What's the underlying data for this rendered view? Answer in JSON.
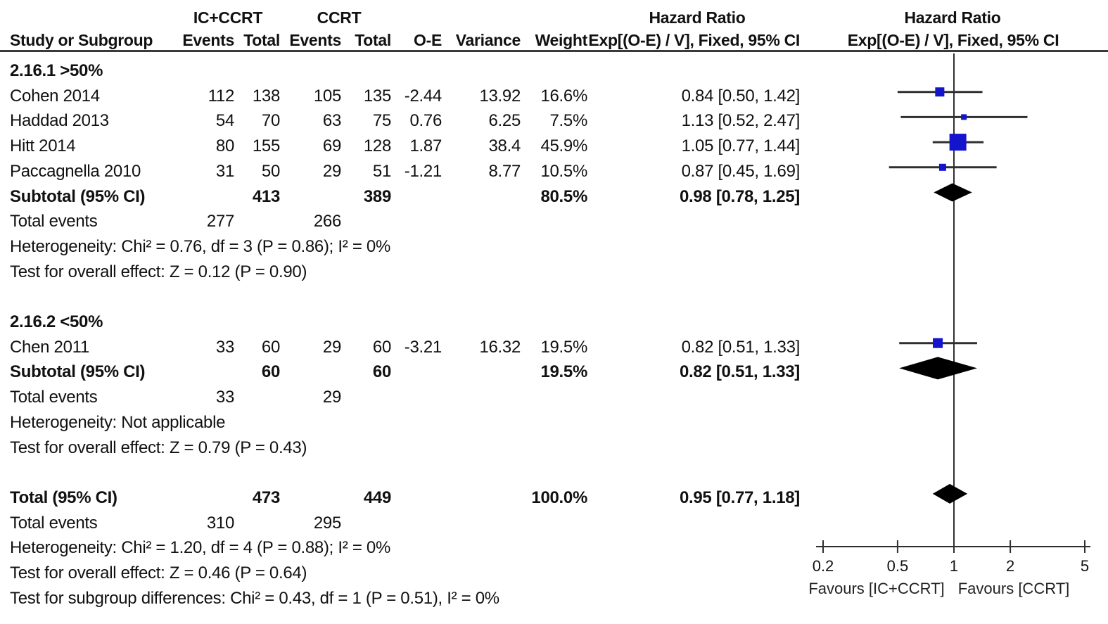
{
  "header": {
    "group1_label": "IC+CCRT",
    "group2_label": "CCRT",
    "hr_text_title": "Hazard Ratio",
    "hr_plot_title": "Hazard Ratio",
    "col_study": "Study or Subgroup",
    "col_events": "Events",
    "col_total": "Total",
    "col_oe": "O-E",
    "col_variance": "Variance",
    "col_weight": "Weight",
    "col_ci": "Exp[(O-E) / V], Fixed, 95% CI"
  },
  "colors": {
    "marker_blue": "#1414CC",
    "line_dark": "#2F2F2F",
    "diamond_black": "#000000",
    "text": "#111111"
  },
  "chart_data": {
    "type": "forest",
    "effect_measure": "Hazard Ratio",
    "model": "Fixed",
    "scale": "log",
    "axis": {
      "ticks": [
        "0.2",
        "0.5",
        "1",
        "2",
        "5"
      ],
      "xlim": [
        0.2,
        5
      ],
      "null_value": 1,
      "favours_left": "Favours [IC+CCRT]",
      "favours_right": "Favours [CCRT]"
    },
    "rows": [
      {
        "type": "subgroup",
        "label": "2.16.1 >50%"
      },
      {
        "type": "study",
        "label": "Cohen 2014",
        "events1": "112",
        "total1": "138",
        "events2": "105",
        "total2": "135",
        "oe": "-2.44",
        "variance": "13.92",
        "weight": "16.6%",
        "ci_text": "0.84 [0.50, 1.42]",
        "hr": 0.84,
        "lo": 0.5,
        "hi": 1.42,
        "msize": 13
      },
      {
        "type": "study",
        "label": "Haddad 2013",
        "events1": "54",
        "total1": "70",
        "events2": "63",
        "total2": "75",
        "oe": "0.76",
        "variance": "6.25",
        "weight": "7.5%",
        "ci_text": "1.13 [0.52, 2.47]",
        "hr": 1.13,
        "lo": 0.52,
        "hi": 2.47,
        "msize": 8
      },
      {
        "type": "study",
        "label": "Hitt 2014",
        "events1": "80",
        "total1": "155",
        "events2": "69",
        "total2": "128",
        "oe": "1.87",
        "variance": "38.4",
        "weight": "45.9%",
        "ci_text": "1.05 [0.77, 1.44]",
        "hr": 1.05,
        "lo": 0.77,
        "hi": 1.44,
        "msize": 24
      },
      {
        "type": "study",
        "label": "Paccagnella 2010",
        "events1": "31",
        "total1": "50",
        "events2": "29",
        "total2": "51",
        "oe": "-1.21",
        "variance": "8.77",
        "weight": "10.5%",
        "ci_text": "0.87 [0.45, 1.69]",
        "hr": 0.87,
        "lo": 0.45,
        "hi": 1.69,
        "msize": 10
      },
      {
        "type": "subtotal",
        "label": "Subtotal (95% CI)",
        "total1": "413",
        "total2": "389",
        "weight": "80.5%",
        "ci_text": "0.98 [0.78, 1.25]",
        "hr": 0.98,
        "lo": 0.78,
        "hi": 1.25,
        "dheight": 13
      },
      {
        "type": "plain",
        "label": "Total events",
        "events1": "277",
        "events2": "266"
      },
      {
        "type": "note",
        "label": "Heterogeneity: Chi² = 0.76, df = 3 (P = 0.86); I² = 0%"
      },
      {
        "type": "note",
        "label": "Test for overall effect: Z = 0.12 (P = 0.90)"
      },
      {
        "type": "spacer"
      },
      {
        "type": "subgroup",
        "label": "2.16.2 <50%"
      },
      {
        "type": "study",
        "label": "Chen 2011",
        "events1": "33",
        "total1": "60",
        "events2": "29",
        "total2": "60",
        "oe": "-3.21",
        "variance": "16.32",
        "weight": "19.5%",
        "ci_text": "0.82 [0.51, 1.33]",
        "hr": 0.82,
        "lo": 0.51,
        "hi": 1.33,
        "msize": 14
      },
      {
        "type": "subtotal",
        "label": "Subtotal (95% CI)",
        "total1": "60",
        "total2": "60",
        "weight": "19.5%",
        "ci_text": "0.82 [0.51, 1.33]",
        "hr": 0.82,
        "lo": 0.51,
        "hi": 1.33,
        "dheight": 16
      },
      {
        "type": "plain",
        "label": "Total events",
        "events1": "33",
        "events2": "29"
      },
      {
        "type": "note",
        "label": "Heterogeneity: Not applicable"
      },
      {
        "type": "note",
        "label": "Test for overall effect: Z = 0.79 (P = 0.43)"
      },
      {
        "type": "spacer"
      },
      {
        "type": "total",
        "label": "Total (95% CI)",
        "total1": "473",
        "total2": "449",
        "weight": "100.0%",
        "ci_text": "0.95 [0.77, 1.18]",
        "hr": 0.95,
        "lo": 0.77,
        "hi": 1.18,
        "dheight": 14
      },
      {
        "type": "plain",
        "label": "Total events",
        "events1": "310",
        "events2": "295"
      },
      {
        "type": "note",
        "label": "Heterogeneity: Chi² = 1.20, df = 4 (P = 0.88); I² = 0%"
      },
      {
        "type": "note",
        "label": "Test for overall effect: Z = 0.46 (P = 0.64)"
      },
      {
        "type": "note",
        "label": "Test for subgroup differences: Chi² = 0.43, df = 1 (P = 0.51), I² = 0%"
      }
    ]
  }
}
